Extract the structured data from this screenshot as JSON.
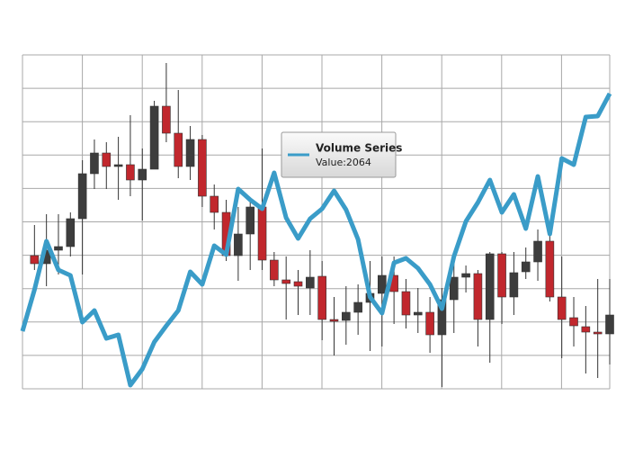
{
  "chart_data": {
    "type": "combo",
    "xlim": [
      0,
      49
    ],
    "ylim": [
      0,
      371
    ],
    "grid": true,
    "series": [
      {
        "type": "candlestick",
        "up_color": "#3d3d3d",
        "down_color": "#c1272d",
        "x": [
          1,
          2,
          3,
          4,
          5,
          6,
          7,
          8,
          9,
          10,
          11,
          12,
          13,
          14,
          15,
          16,
          17,
          18,
          19,
          20,
          21,
          22,
          23,
          24,
          25,
          26,
          27,
          28,
          29,
          30,
          31,
          32,
          33,
          34,
          35,
          36,
          37,
          38,
          39,
          40,
          41,
          42,
          43,
          44,
          45,
          46,
          47,
          48,
          49
        ],
        "open": [
          148,
          139,
          154,
          158,
          189,
          239,
          262,
          247,
          249,
          232,
          244,
          314,
          284,
          247,
          277,
          214,
          196,
          148,
          172,
          202,
          143,
          121,
          119,
          112,
          125,
          77,
          76,
          85,
          96,
          106,
          126,
          108,
          82,
          85,
          60,
          99,
          124,
          128,
          77,
          150,
          102,
          130,
          141,
          164,
          102,
          79,
          69,
          63,
          61
        ],
        "high": [
          182,
          194,
          194,
          196,
          254,
          277,
          274,
          280,
          304,
          267,
          320,
          362,
          332,
          292,
          282,
          227,
          210,
          202,
          210,
          267,
          152,
          147,
          132,
          154,
          142,
          102,
          114,
          116,
          142,
          147,
          147,
          122,
          112,
          102,
          112,
          142,
          137,
          132,
          152,
          152,
          152,
          157,
          177,
          170,
          147,
          102,
          92,
          122,
          122
        ],
        "low": [
          132,
          114,
          127,
          147,
          127,
          222,
          222,
          210,
          214,
          187,
          244,
          274,
          234,
          232,
          202,
          177,
          142,
          120,
          132,
          132,
          114,
          77,
          82,
          82,
          54,
          37,
          49,
          60,
          42,
          47,
          72,
          67,
          62,
          40,
          2,
          62,
          107,
          47,
          29,
          72,
          82,
          122,
          120,
          97,
          34,
          47,
          17,
          12,
          27
        ],
        "close": [
          139,
          154,
          158,
          189,
          239,
          262,
          247,
          249,
          232,
          244,
          314,
          284,
          247,
          277,
          214,
          196,
          148,
          172,
          202,
          143,
          121,
          117,
          114,
          124,
          77,
          75,
          85,
          96,
          106,
          126,
          108,
          82,
          85,
          60,
          99,
          124,
          128,
          77,
          150,
          102,
          129,
          141,
          164,
          102,
          77,
          70,
          63,
          61,
          82
        ]
      },
      {
        "type": "line",
        "name": "Volume Series",
        "color": "#3a9cc8",
        "x": [
          0,
          1,
          2,
          3,
          4,
          5,
          6,
          7,
          8,
          9,
          10,
          11,
          12,
          13,
          14,
          15,
          16,
          17,
          18,
          19,
          20,
          21,
          22,
          23,
          24,
          25,
          26,
          27,
          28,
          29,
          30,
          31,
          32,
          33,
          34,
          35,
          36,
          37,
          38,
          39,
          40,
          41,
          42,
          43,
          44,
          45,
          46,
          47,
          48,
          49
        ],
        "values": [
          64,
          110,
          164,
          132,
          126,
          74,
          87,
          56,
          60,
          4,
          22,
          52,
          70,
          87,
          130,
          116,
          159,
          149,
          222,
          210,
          200,
          240,
          190,
          167,
          189,
          200,
          220,
          199,
          166,
          102,
          84,
          140,
          145,
          134,
          116,
          89,
          147,
          186,
          207,
          232,
          196,
          216,
          178,
          236,
          172,
          256,
          249,
          302,
          303,
          328
        ]
      }
    ],
    "tooltip": {
      "label": "Value:2064"
    }
  }
}
